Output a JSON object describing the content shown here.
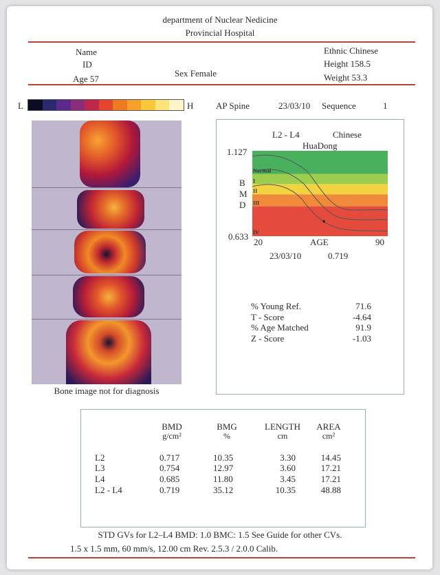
{
  "header": {
    "department": "department of Nuclear Nedicine",
    "hospital": "Provincial Hospital"
  },
  "patient": {
    "name_label": "Name",
    "id_label": "ID",
    "age_text": "Age 57",
    "sex_text": "Sex Female",
    "ethnic_text": "Ethnic  Chinese",
    "height_text": "Height  158.5",
    "weight_text": "Weight  53.3"
  },
  "scale": {
    "low": "L",
    "high": "H",
    "colors": [
      "#0b0b22",
      "#2a2a6e",
      "#5a2a8c",
      "#8a2d7a",
      "#c0284b",
      "#e4452c",
      "#f07a22",
      "#f5a12a",
      "#f8c73a",
      "#fbe37a",
      "#fdf4c8"
    ]
  },
  "scan": {
    "region": "AP Spine",
    "date": "23/03/10",
    "sequence_label": "Sequence",
    "sequence": "1",
    "caption": "Bone image not for diagnosis"
  },
  "chart_data": {
    "type": "area",
    "title": "L2 - L4",
    "reference": "Chinese",
    "reference_sub": "HuaDong",
    "ylabel": [
      "B",
      "M",
      "D"
    ],
    "xlabel": "AGE",
    "xlim": [
      20,
      90
    ],
    "ylim": [
      0.633,
      1.127
    ],
    "y_max_label": "1.127",
    "y_min_label": "0.633",
    "x_min_label": "20",
    "x_max_label": "90",
    "bands": [
      {
        "label": "Normal",
        "color": "#49b15e"
      },
      {
        "label": "I",
        "color": "#9ccd4e"
      },
      {
        "label": "II",
        "color": "#f1d23f"
      },
      {
        "label": "III",
        "color": "#ef8a3b"
      },
      {
        "label": "IV",
        "color": "#e44b3c"
      }
    ],
    "patient_point": {
      "age": 57,
      "bmd": 0.719
    },
    "footer_date": "23/03/10",
    "footer_bmd": "0.719"
  },
  "scores": [
    {
      "label": "% Young Ref.",
      "value": "71.6"
    },
    {
      "label": "T  -  Score",
      "value": "-4.64"
    },
    {
      "label": "% Age Matched",
      "value": "91.9"
    },
    {
      "label": "Z  -  Score",
      "value": "-1.03"
    }
  ],
  "table": {
    "headers": [
      {
        "name": "BMD",
        "unit": "g/cm²"
      },
      {
        "name": "BMG",
        "unit": "%"
      },
      {
        "name": "LENGTH",
        "unit": "cm"
      },
      {
        "name": "AREA",
        "unit": "cm²"
      }
    ],
    "rows": [
      {
        "region": "L2",
        "bmd": "0.717",
        "bmg": "10.35",
        "length": "3.30",
        "area": "14.45"
      },
      {
        "region": "L3",
        "bmd": "0.754",
        "bmg": "12.97",
        "length": "3.60",
        "area": "17.21"
      },
      {
        "region": "L4",
        "bmd": "0.685",
        "bmg": "11.80",
        "length": "3.45",
        "area": "17.21"
      },
      {
        "region": "L2 - L4",
        "bmd": "0.719",
        "bmg": "35.12",
        "length": "10.35",
        "area": "48.88"
      }
    ]
  },
  "footer": {
    "line1": "STD GVs for L2–L4 BMD: 1.0 BMC: 1.5   See Guide for other CVs.",
    "line2": "1.5 x 1.5 mm,  60 mm/s,  12.00 cm    Rev. 2.5.3 / 2.0.0   Calib."
  }
}
